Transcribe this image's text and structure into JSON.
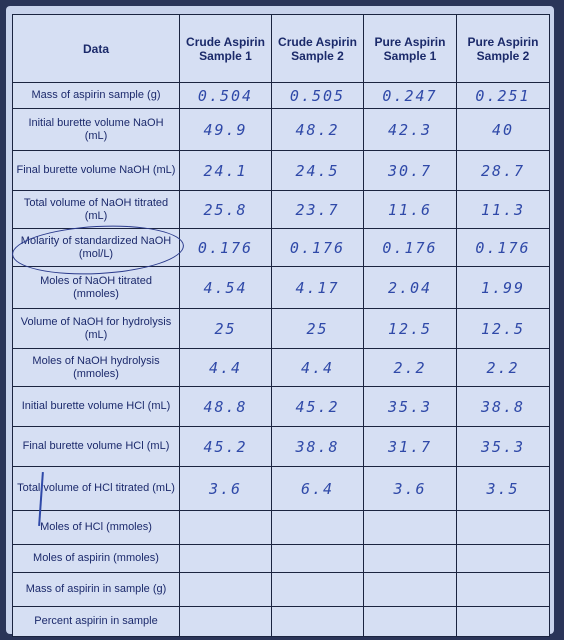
{
  "headers": {
    "data": "Data",
    "crude1": "Crude Aspirin Sample 1",
    "crude2": "Crude Aspirin Sample 2",
    "pure1": "Pure Aspirin Sample 1",
    "pure2": "Pure Aspirin Sample 2"
  },
  "rows": [
    {
      "label": "Mass of aspirin sample (g)",
      "values": [
        "0.504",
        "0.505",
        "0.247",
        "0.251"
      ]
    },
    {
      "label": "Initial burette volume NaOH (mL)",
      "values": [
        "49.9",
        "48.2",
        "42.3",
        "40"
      ]
    },
    {
      "label": "Final burette volume NaOH (mL)",
      "values": [
        "24.1",
        "24.5",
        "30.7",
        "28.7"
      ]
    },
    {
      "label": "Total volume of NaOH titrated (mL)",
      "values": [
        "25.8",
        "23.7",
        "11.6",
        "11.3"
      ]
    },
    {
      "label": "Molarity of standardized NaOH (mol/L)",
      "values": [
        "0.176",
        "0.176",
        "0.176",
        "0.176"
      ]
    },
    {
      "label": "Moles of NaOH titrated (mmoles)",
      "values": [
        "4.54",
        "4.17",
        "2.04",
        "1.99"
      ]
    },
    {
      "label": "Volume of NaOH for hydrolysis (mL)",
      "values": [
        "25",
        "25",
        "12.5",
        "12.5"
      ]
    },
    {
      "label": "Moles of NaOH hydrolysis (mmoles)",
      "values": [
        "4.4",
        "4.4",
        "2.2",
        "2.2"
      ]
    },
    {
      "label": "Initial burette volume HCl (mL)",
      "values": [
        "48.8",
        "45.2",
        "35.3",
        "38.8"
      ]
    },
    {
      "label": "Final burette volume HCl (mL)",
      "values": [
        "45.2",
        "38.8",
        "31.7",
        "35.3"
      ]
    },
    {
      "label": "Total volume of HCl titrated (mL)",
      "values": [
        "3.6",
        "6.4",
        "3.6",
        "3.5"
      ]
    },
    {
      "label": "Moles of HCl (mmoles)",
      "values": [
        "",
        "",
        "",
        ""
      ]
    },
    {
      "label": "Moles of aspirin (mmoles)",
      "values": [
        "",
        "",
        "",
        ""
      ]
    },
    {
      "label": "Mass of aspirin in sample (g)",
      "values": [
        "",
        "",
        "",
        ""
      ]
    },
    {
      "label": "Percent aspirin in sample",
      "values": [
        "",
        "",
        "",
        ""
      ]
    }
  ]
}
